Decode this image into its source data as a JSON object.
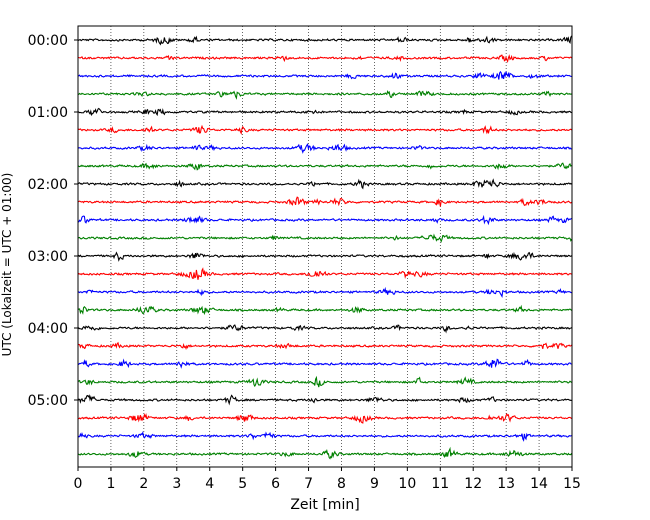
{
  "chart_data": {
    "type": "line",
    "title": "",
    "xlabel": "Zeit  [min]",
    "ylabel": "UTC (Lokalzeit = UTC + 01:00)",
    "xlim": [
      0,
      15
    ],
    "x_ticks": [
      "0",
      "1",
      "2",
      "3",
      "4",
      "5",
      "6",
      "7",
      "8",
      "9",
      "10",
      "11",
      "12",
      "13",
      "14",
      "15"
    ],
    "y_ticks": [
      "00:00",
      "01:00",
      "02:00",
      "03:00",
      "04:00",
      "05:00"
    ],
    "trace_interval_min": 15,
    "trace_count": 24,
    "trace_color_cycle": [
      "#000000",
      "#ff0000",
      "#0000ff",
      "#008000"
    ],
    "grid": "vertical dotted at each minute",
    "trace_start_times": [
      "00:00",
      "00:15",
      "00:30",
      "00:45",
      "01:00",
      "01:15",
      "01:30",
      "01:45",
      "02:00",
      "02:15",
      "02:30",
      "02:45",
      "03:00",
      "03:15",
      "03:30",
      "03:45",
      "04:00",
      "04:15",
      "04:30",
      "04:45",
      "05:00",
      "05:15",
      "05:30",
      "05:45"
    ]
  }
}
